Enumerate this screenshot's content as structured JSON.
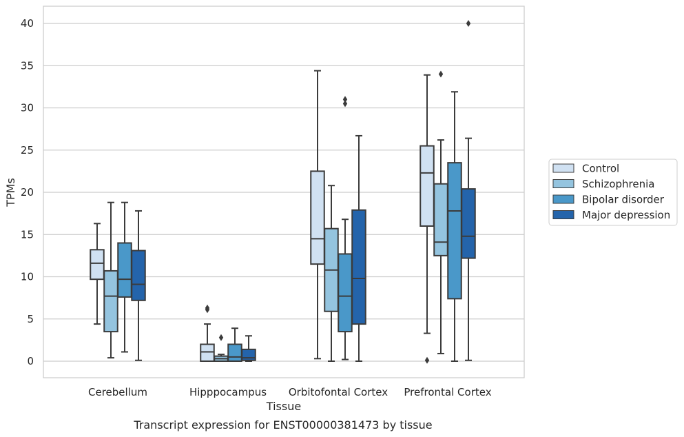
{
  "chart_data": {
    "type": "box",
    "caption": "Transcript expression for ENST00000381473 by tissue",
    "xlabel": "Tissue",
    "ylabel": "TPMs",
    "ylim": [
      -1.9,
      42
    ],
    "yticks": [
      0,
      5,
      10,
      15,
      20,
      25,
      30,
      35,
      40
    ],
    "grid": "horizontal",
    "legend_position": "right",
    "categories": [
      "Cerebellum",
      "Hipppocampus",
      "Orbitofontal Cortex",
      "Prefrontal Cortex"
    ],
    "series": [
      {
        "name": "Control",
        "color": "#d0e1f2",
        "boxes": [
          {
            "whislo": 4.4,
            "q1": 9.7,
            "med": 11.6,
            "q3": 13.2,
            "whishi": 16.3,
            "fliers": []
          },
          {
            "whislo": 0.0,
            "q1": 0.0,
            "med": 1.1,
            "q3": 2.0,
            "whishi": 4.4,
            "fliers": [
              6.1,
              6.3
            ]
          },
          {
            "whislo": 0.3,
            "q1": 11.5,
            "med": 14.5,
            "q3": 22.5,
            "whishi": 34.4,
            "fliers": []
          },
          {
            "whislo": 3.3,
            "q1": 16.0,
            "med": 22.3,
            "q3": 25.5,
            "whishi": 33.9,
            "fliers": [
              0.1
            ]
          }
        ]
      },
      {
        "name": "Schizophrenia",
        "color": "#94c4df",
        "boxes": [
          {
            "whislo": 0.4,
            "q1": 3.5,
            "med": 7.7,
            "q3": 10.7,
            "whishi": 18.8,
            "fliers": []
          },
          {
            "whislo": 0.0,
            "q1": 0.0,
            "med": 0.3,
            "q3": 0.6,
            "whishi": 0.8,
            "fliers": [
              2.8
            ]
          },
          {
            "whislo": 0.0,
            "q1": 5.9,
            "med": 10.8,
            "q3": 15.7,
            "whishi": 20.8,
            "fliers": []
          },
          {
            "whislo": 0.9,
            "q1": 12.5,
            "med": 14.1,
            "q3": 21.0,
            "whishi": 26.2,
            "fliers": [
              34.0
            ]
          }
        ]
      },
      {
        "name": "Bipolar disorder",
        "color": "#4a98c9",
        "boxes": [
          {
            "whislo": 1.1,
            "q1": 7.6,
            "med": 9.7,
            "q3": 14.0,
            "whishi": 18.8,
            "fliers": []
          },
          {
            "whislo": 0.0,
            "q1": 0.0,
            "med": 0.5,
            "q3": 2.0,
            "whishi": 3.9,
            "fliers": []
          },
          {
            "whislo": 0.2,
            "q1": 3.5,
            "med": 7.7,
            "q3": 12.7,
            "whishi": 16.8,
            "fliers": [
              30.5,
              31.0
            ]
          },
          {
            "whislo": 0.0,
            "q1": 7.4,
            "med": 17.8,
            "q3": 23.5,
            "whishi": 31.9,
            "fliers": []
          }
        ]
      },
      {
        "name": "Major depression",
        "color": "#2464ab",
        "boxes": [
          {
            "whislo": 0.1,
            "q1": 7.2,
            "med": 9.1,
            "q3": 13.1,
            "whishi": 17.8,
            "fliers": []
          },
          {
            "whislo": 0.0,
            "q1": 0.1,
            "med": 0.4,
            "q3": 1.4,
            "whishi": 3.0,
            "fliers": []
          },
          {
            "whislo": 0.0,
            "q1": 4.4,
            "med": 9.8,
            "q3": 17.9,
            "whishi": 26.7,
            "fliers": []
          },
          {
            "whislo": 0.1,
            "q1": 12.2,
            "med": 14.8,
            "q3": 20.4,
            "whishi": 26.4,
            "fliers": [
              40.0
            ]
          }
        ]
      }
    ]
  }
}
